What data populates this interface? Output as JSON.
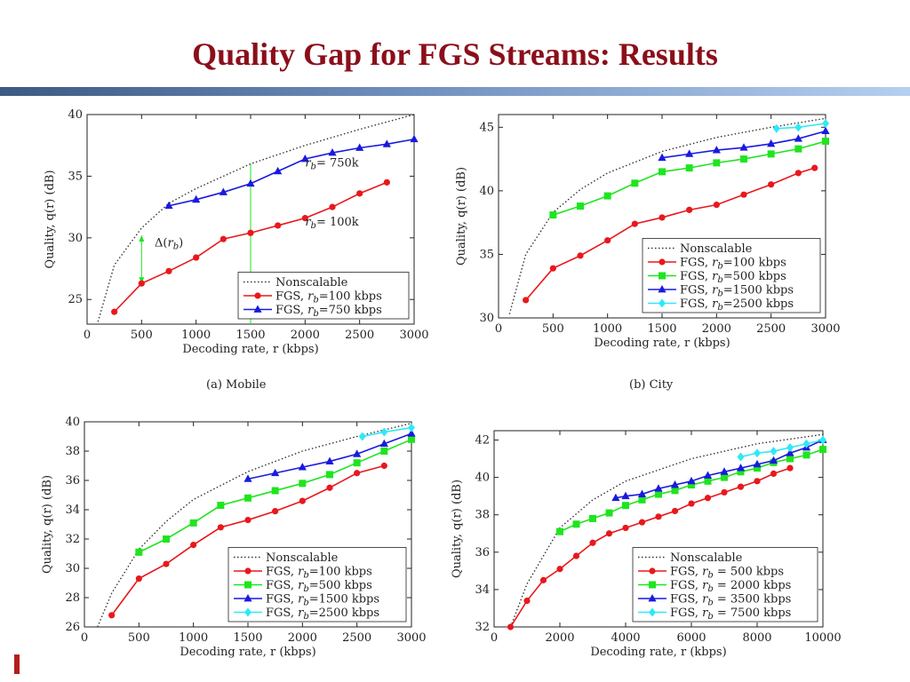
{
  "slide": {
    "title": "Quality Gap for FGS Streams: Results"
  },
  "colors": {
    "title": "#8b0e1a",
    "red": "#e8181c",
    "green": "#1ee51e",
    "blue": "#1a1ade",
    "cyan": "#2ee9f5"
  },
  "chart_data": [
    {
      "type": "line",
      "caption": "(a) Mobile",
      "xlabel": "Decoding rate, r (kbps)",
      "ylabel": "Quality, q(r) (dB)",
      "xlim": [
        0,
        3000
      ],
      "ylim": [
        23,
        40
      ],
      "xticks": [
        0,
        500,
        1000,
        1500,
        2000,
        2500,
        3000
      ],
      "yticks": [
        25,
        30,
        35,
        40
      ],
      "legend_position": "bottom-right",
      "nonscalable": {
        "name": "Nonscalable",
        "x": [
          100,
          250,
          500,
          750,
          1000,
          1500,
          2000,
          2500,
          3000
        ],
        "y": [
          23.2,
          27.8,
          30.8,
          32.8,
          34.0,
          36.0,
          37.5,
          38.8,
          40.0
        ]
      },
      "series": [
        {
          "name": "FGS, r_b=100 kbps",
          "color": "red",
          "marker": "circle",
          "x": [
            250,
            500,
            750,
            1000,
            1250,
            1500,
            1750,
            2000,
            2250,
            2500,
            2750
          ],
          "y": [
            24.0,
            26.3,
            27.3,
            28.4,
            29.9,
            30.4,
            31.0,
            31.6,
            32.5,
            33.6,
            34.5
          ]
        },
        {
          "name": "FGS, r_b=750 kbps",
          "color": "blue",
          "marker": "triangle",
          "x": [
            750,
            1000,
            1250,
            1500,
            1750,
            2000,
            2250,
            2500,
            2750,
            3000
          ],
          "y": [
            32.6,
            33.1,
            33.7,
            34.4,
            35.4,
            36.4,
            36.9,
            37.3,
            37.6,
            38.0
          ]
        }
      ],
      "annotations": [
        {
          "text": "r_b= 750k",
          "x": 2000,
          "y": 35.8
        },
        {
          "text": "r_b= 100k",
          "x": 2000,
          "y": 31.0
        },
        {
          "text": "Δ(r_b)",
          "x": 620,
          "y": 29.3
        }
      ],
      "guides": [
        {
          "x": 500,
          "y_from": 26.3,
          "y_to": 30.2
        },
        {
          "x": 1500,
          "y_from": 23.0,
          "y_to": 36.0
        }
      ]
    },
    {
      "type": "line",
      "caption": "(b) City",
      "xlabel": "Decoding rate, r (kbps)",
      "ylabel": "Quality, q(r) (dB)",
      "xlim": [
        0,
        3000
      ],
      "ylim": [
        30,
        46
      ],
      "xticks": [
        0,
        500,
        1000,
        1500,
        2000,
        2500,
        3000
      ],
      "yticks": [
        30,
        35,
        40,
        45
      ],
      "legend_position": "bottom-right",
      "nonscalable": {
        "name": "Nonscalable",
        "x": [
          100,
          250,
          500,
          750,
          1000,
          1500,
          2000,
          2500,
          3000
        ],
        "y": [
          30.3,
          35.0,
          38.3,
          40.1,
          41.4,
          43.1,
          44.2,
          45.0,
          45.7
        ]
      },
      "series": [
        {
          "name": "FGS, r_b=100 kbps",
          "color": "red",
          "marker": "circle",
          "x": [
            250,
            500,
            750,
            1000,
            1250,
            1500,
            1750,
            2000,
            2250,
            2500,
            2750,
            2900
          ],
          "y": [
            31.4,
            33.9,
            34.9,
            36.1,
            37.4,
            37.9,
            38.5,
            38.9,
            39.7,
            40.5,
            41.4,
            41.8
          ]
        },
        {
          "name": "FGS, r_b=500 kbps",
          "color": "green",
          "marker": "square",
          "x": [
            500,
            750,
            1000,
            1250,
            1500,
            1750,
            2000,
            2250,
            2500,
            2750,
            3000
          ],
          "y": [
            38.1,
            38.8,
            39.6,
            40.6,
            41.5,
            41.8,
            42.2,
            42.5,
            42.9,
            43.3,
            43.9
          ]
        },
        {
          "name": "FGS, r_b=1500 kbps",
          "color": "blue",
          "marker": "triangle",
          "x": [
            1500,
            1750,
            2000,
            2250,
            2500,
            2750,
            3000
          ],
          "y": [
            42.6,
            42.9,
            43.2,
            43.4,
            43.7,
            44.1,
            44.7
          ]
        },
        {
          "name": "FGS, r_b=2500 kbps",
          "color": "cyan",
          "marker": "diamond",
          "x": [
            2550,
            2750,
            3000
          ],
          "y": [
            44.9,
            45.0,
            45.3
          ]
        }
      ]
    },
    {
      "type": "line",
      "caption": "",
      "xlabel": "Decoding rate, r (kbps)",
      "ylabel": "Quality, q(r) (dB)",
      "xlim": [
        0,
        3000
      ],
      "ylim": [
        26,
        40
      ],
      "xticks": [
        0,
        500,
        1000,
        1500,
        2000,
        2500,
        3000
      ],
      "yticks": [
        26,
        28,
        30,
        32,
        34,
        36,
        38,
        40
      ],
      "legend_position": "bottom-right",
      "nonscalable": {
        "name": "Nonscalable",
        "x": [
          120,
          250,
          500,
          750,
          1000,
          1500,
          2000,
          2500,
          3000
        ],
        "y": [
          26.0,
          28.3,
          31.3,
          33.2,
          34.7,
          36.6,
          38.0,
          39.0,
          39.9
        ]
      },
      "series": [
        {
          "name": "FGS, r_b=100 kbps",
          "color": "red",
          "marker": "circle",
          "x": [
            250,
            500,
            750,
            1000,
            1250,
            1500,
            1750,
            2000,
            2250,
            2500,
            2750
          ],
          "y": [
            26.8,
            29.3,
            30.3,
            31.6,
            32.8,
            33.3,
            33.9,
            34.6,
            35.5,
            36.5,
            37.0
          ]
        },
        {
          "name": "FGS, r_b=500 kbps",
          "color": "green",
          "marker": "square",
          "x": [
            500,
            750,
            1000,
            1250,
            1500,
            1750,
            2000,
            2250,
            2500,
            2750,
            3000
          ],
          "y": [
            31.1,
            32.0,
            33.1,
            34.3,
            34.8,
            35.3,
            35.8,
            36.4,
            37.2,
            38.0,
            38.8
          ]
        },
        {
          "name": "FGS, r_b=1500 kbps",
          "color": "blue",
          "marker": "triangle",
          "x": [
            1500,
            1750,
            2000,
            2250,
            2500,
            2750,
            3000
          ],
          "y": [
            36.1,
            36.5,
            36.9,
            37.3,
            37.8,
            38.5,
            39.2
          ]
        },
        {
          "name": "FGS, r_b=2500 kbps",
          "color": "cyan",
          "marker": "diamond",
          "x": [
            2550,
            2750,
            3000
          ],
          "y": [
            39.0,
            39.3,
            39.6
          ]
        }
      ]
    },
    {
      "type": "line",
      "caption": "",
      "xlabel": "Decoding rate, r (kbps)",
      "ylabel": "Quality, q(r) (dB)",
      "xlim": [
        0,
        10000
      ],
      "ylim": [
        32,
        42.5
      ],
      "xticks": [
        0,
        2000,
        4000,
        6000,
        8000,
        10000
      ],
      "yticks": [
        32,
        34,
        36,
        38,
        40,
        42
      ],
      "legend_position": "bottom-right",
      "nonscalable": {
        "name": "Nonscalable",
        "x": [
          500,
          1000,
          2000,
          3000,
          4000,
          6000,
          8000,
          10000
        ],
        "y": [
          32.0,
          34.3,
          37.3,
          38.8,
          39.8,
          41.0,
          41.8,
          42.3
        ]
      },
      "series": [
        {
          "name": "FGS, r_b = 500 kbps",
          "color": "red",
          "marker": "circle",
          "x": [
            500,
            1000,
            1500,
            2000,
            2500,
            3000,
            3500,
            4000,
            4500,
            5000,
            5500,
            6000,
            6500,
            7000,
            7500,
            8000,
            8500,
            9000
          ],
          "y": [
            32.0,
            33.4,
            34.5,
            35.1,
            35.8,
            36.5,
            37.0,
            37.3,
            37.6,
            37.9,
            38.2,
            38.6,
            38.9,
            39.2,
            39.5,
            39.8,
            40.2,
            40.5
          ]
        },
        {
          "name": "FGS, r_b = 2000 kbps",
          "color": "green",
          "marker": "square",
          "x": [
            2000,
            2500,
            3000,
            3500,
            4000,
            4500,
            5000,
            5500,
            6000,
            6500,
            7000,
            7500,
            8000,
            8500,
            9000,
            9500,
            10000
          ],
          "y": [
            37.1,
            37.5,
            37.8,
            38.1,
            38.5,
            38.8,
            39.1,
            39.3,
            39.6,
            39.8,
            40.0,
            40.3,
            40.5,
            40.8,
            41.0,
            41.2,
            41.5
          ]
        },
        {
          "name": "FGS, r_b = 3500 kbps",
          "color": "blue",
          "marker": "triangle",
          "x": [
            3700,
            4000,
            4500,
            5000,
            5500,
            6000,
            6500,
            7000,
            7500,
            8000,
            8500,
            9000,
            9500,
            10000
          ],
          "y": [
            38.9,
            39.0,
            39.1,
            39.4,
            39.6,
            39.8,
            40.1,
            40.3,
            40.5,
            40.7,
            40.9,
            41.3,
            41.6,
            42.0
          ]
        },
        {
          "name": "FGS, r_b = 7500 kbps",
          "color": "cyan",
          "marker": "diamond",
          "x": [
            7500,
            8000,
            8500,
            9000,
            9500,
            10000
          ],
          "y": [
            41.1,
            41.3,
            41.4,
            41.6,
            41.8,
            42.0
          ]
        }
      ]
    }
  ]
}
